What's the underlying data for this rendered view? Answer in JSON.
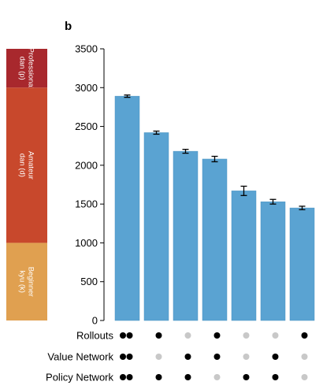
{
  "panel_letter": "b",
  "colors": {
    "bar": "#5aa3d2",
    "bar_stroke": "#4a92c1",
    "axis": "#000000",
    "dot_on": "#000000",
    "dot_off": "#c8c8c8"
  },
  "rank_bands": [
    {
      "line1": "Professional",
      "line2": "dan (p)",
      "from": 3000,
      "to": 3500,
      "color": "#a8282d"
    },
    {
      "line1": "Amateur",
      "line2": "dan (d)",
      "from": 1000,
      "to": 3000,
      "color": "#c8482c"
    },
    {
      "line1": "Beginner",
      "line2": "kyu (k)",
      "from": 0,
      "to": 1000,
      "color": "#e0a050"
    }
  ],
  "chart_data": {
    "type": "bar",
    "title": "",
    "xlabel": "",
    "ylabel": "",
    "ylim": [
      0,
      3500
    ],
    "yticks": [
      0,
      500,
      1000,
      1500,
      2000,
      2500,
      3000,
      3500
    ],
    "values": [
      2890,
      2420,
      2180,
      2080,
      1670,
      1530,
      1450
    ],
    "errors": [
      15,
      20,
      25,
      35,
      60,
      30,
      22
    ],
    "grid": false,
    "legend": "none",
    "configurations": [
      {
        "label": "Rollouts",
        "flags": [
          1,
          1,
          0,
          1,
          0,
          0,
          1
        ]
      },
      {
        "label": "Value Network",
        "flags": [
          1,
          0,
          1,
          1,
          0,
          1,
          0
        ]
      },
      {
        "label": "Policy Network",
        "flags": [
          1,
          1,
          1,
          0,
          1,
          1,
          0
        ]
      }
    ]
  }
}
